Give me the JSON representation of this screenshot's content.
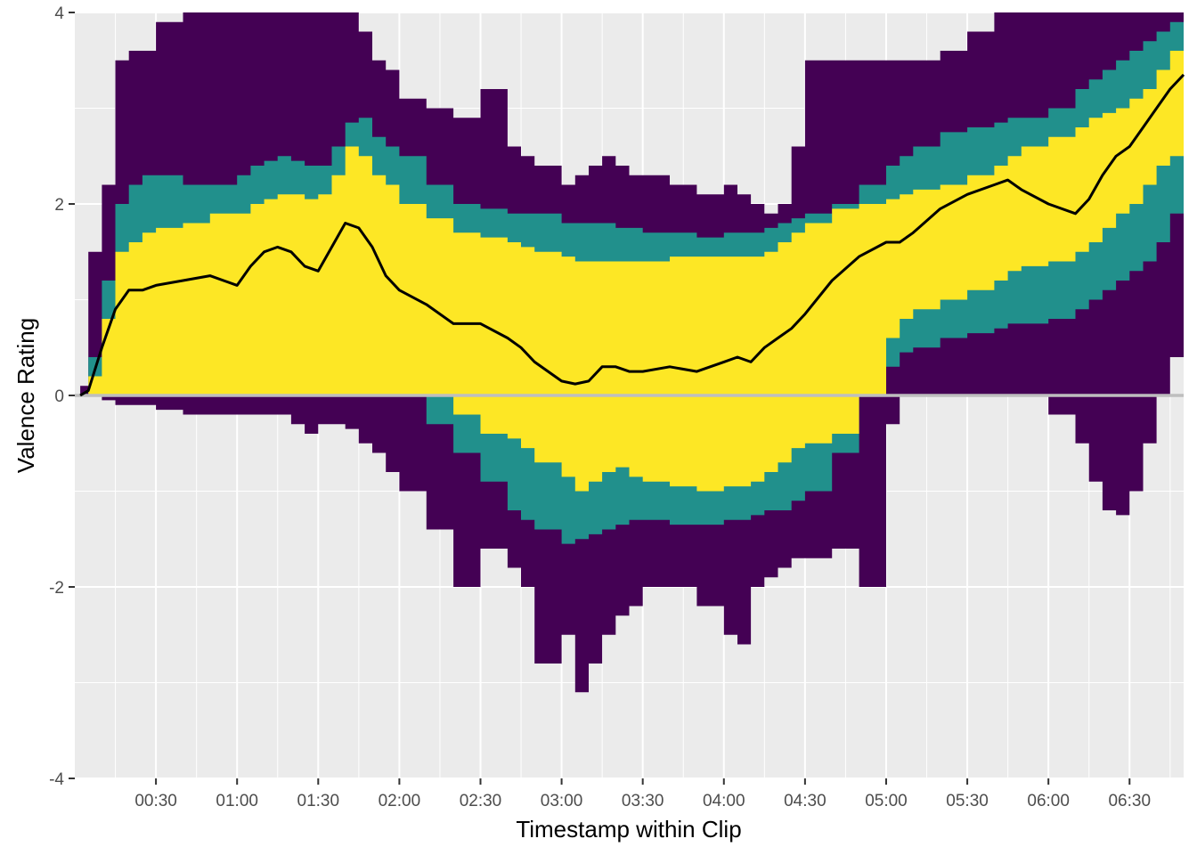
{
  "chart_data": {
    "type": "area",
    "xlabel": "Timestamp within Clip",
    "ylabel": "Valence Rating",
    "xlim": [
      0,
      410
    ],
    "ylim": [
      -4,
      4
    ],
    "x_ticks": [
      {
        "value": 30,
        "label": "00:30"
      },
      {
        "value": 60,
        "label": "01:00"
      },
      {
        "value": 90,
        "label": "01:30"
      },
      {
        "value": 120,
        "label": "02:00"
      },
      {
        "value": 150,
        "label": "02:30"
      },
      {
        "value": 180,
        "label": "03:00"
      },
      {
        "value": 210,
        "label": "03:30"
      },
      {
        "value": 240,
        "label": "04:00"
      },
      {
        "value": 270,
        "label": "04:30"
      },
      {
        "value": 300,
        "label": "05:00"
      },
      {
        "value": 330,
        "label": "05:30"
      },
      {
        "value": 360,
        "label": "06:00"
      },
      {
        "value": 390,
        "label": "06:30"
      }
    ],
    "y_ticks": [
      {
        "value": -4,
        "label": "-4"
      },
      {
        "value": -2,
        "label": "-2"
      },
      {
        "value": 0,
        "label": "0"
      },
      {
        "value": 2,
        "label": "2"
      },
      {
        "value": 4,
        "label": "4"
      }
    ],
    "reference_line_y": 0,
    "grid": true,
    "legend": "none",
    "x": [
      2,
      5,
      10,
      15,
      20,
      25,
      30,
      40,
      50,
      60,
      65,
      70,
      75,
      80,
      85,
      90,
      95,
      100,
      105,
      110,
      115,
      120,
      130,
      140,
      150,
      160,
      165,
      170,
      180,
      185,
      190,
      195,
      200,
      205,
      210,
      220,
      230,
      240,
      245,
      250,
      255,
      260,
      265,
      270,
      280,
      290,
      300,
      305,
      310,
      320,
      330,
      340,
      345,
      350,
      360,
      370,
      375,
      380,
      385,
      390,
      395,
      400,
      405,
      410
    ],
    "series": [
      {
        "color": "#000000",
        "values": [
          0,
          0.05,
          0.5,
          0.9,
          1.1,
          1.1,
          1.15,
          1.2,
          1.25,
          1.15,
          1.35,
          1.5,
          1.55,
          1.5,
          1.35,
          1.3,
          1.55,
          1.8,
          1.75,
          1.55,
          1.25,
          1.1,
          0.95,
          0.75,
          0.75,
          0.6,
          0.5,
          0.35,
          0.15,
          0.12,
          0.15,
          0.3,
          0.3,
          0.25,
          0.25,
          0.3,
          0.25,
          0.35,
          0.4,
          0.35,
          0.5,
          0.6,
          0.7,
          0.85,
          1.2,
          1.45,
          1.6,
          1.6,
          1.7,
          1.95,
          2.1,
          2.2,
          2.25,
          2.15,
          2.0,
          1.9,
          2.05,
          2.3,
          2.5,
          2.6,
          2.8,
          3.0,
          3.2,
          3.35
        ]
      }
    ],
    "bands": [
      {
        "color": "#440154",
        "lower": [
          0,
          0,
          -0.05,
          -0.1,
          -0.1,
          -0.1,
          -0.15,
          -0.2,
          -0.2,
          -0.2,
          -0.2,
          -0.2,
          -0.2,
          -0.3,
          -0.4,
          -0.3,
          -0.3,
          -0.35,
          -0.5,
          -0.6,
          -0.8,
          -1.0,
          -1.4,
          -2.0,
          -1.6,
          -1.8,
          -2.0,
          -2.8,
          -2.5,
          -3.1,
          -2.8,
          -2.5,
          -2.3,
          -2.2,
          -2.0,
          -2.0,
          -2.2,
          -2.5,
          -2.6,
          -2.0,
          -1.9,
          -1.8,
          -1.7,
          -1.7,
          -1.6,
          -2.0,
          -0.3,
          0.0,
          0.0,
          0.0,
          0.0,
          0.0,
          0.0,
          0.0,
          -0.2,
          -0.5,
          -0.9,
          -1.2,
          -1.25,
          -1.0,
          -0.5,
          0.0,
          0.4,
          0.6
        ],
        "upper": [
          0.1,
          1.5,
          2.2,
          3.5,
          3.6,
          3.6,
          3.9,
          4.0,
          4.0,
          4.0,
          4.0,
          4.0,
          4.0,
          4.0,
          4.0,
          4.0,
          4.0,
          4.0,
          3.8,
          3.5,
          3.4,
          3.1,
          3.0,
          2.9,
          3.2,
          2.6,
          2.5,
          2.4,
          2.2,
          2.3,
          2.4,
          2.5,
          2.4,
          2.3,
          2.3,
          2.2,
          2.1,
          2.2,
          2.1,
          2.0,
          1.9,
          2.0,
          2.6,
          3.5,
          3.5,
          3.5,
          3.5,
          3.5,
          3.5,
          3.6,
          3.8,
          4.0,
          4.0,
          4.0,
          4.0,
          4.0,
          4.0,
          4.0,
          4.0,
          4.0,
          4.0,
          4.0,
          4.0,
          4.0
        ]
      },
      {
        "color": "#21908C",
        "lower": [
          0,
          0,
          0,
          0,
          0,
          0.1,
          0.2,
          0.3,
          0.3,
          0.3,
          0.4,
          0.45,
          0.5,
          0.55,
          0.6,
          0.7,
          0.8,
          0.95,
          0.85,
          0.55,
          0.3,
          0.1,
          -0.3,
          -0.6,
          -0.9,
          -1.2,
          -1.3,
          -1.4,
          -1.55,
          -1.5,
          -1.45,
          -1.4,
          -1.35,
          -1.3,
          -1.3,
          -1.35,
          -1.35,
          -1.3,
          -1.3,
          -1.25,
          -1.2,
          -1.2,
          -1.1,
          -1.0,
          -0.6,
          0.0,
          0.3,
          0.45,
          0.5,
          0.6,
          0.65,
          0.7,
          0.75,
          0.75,
          0.8,
          0.9,
          1.0,
          1.1,
          1.2,
          1.3,
          1.4,
          1.6,
          1.9,
          2.0
        ],
        "upper": [
          0,
          0.4,
          1.2,
          2.0,
          2.2,
          2.3,
          2.3,
          2.2,
          2.2,
          2.3,
          2.4,
          2.45,
          2.5,
          2.45,
          2.4,
          2.4,
          2.6,
          2.85,
          2.9,
          2.7,
          2.6,
          2.5,
          2.2,
          2.0,
          1.95,
          1.9,
          1.9,
          1.9,
          1.8,
          1.8,
          1.8,
          1.8,
          1.75,
          1.75,
          1.7,
          1.7,
          1.65,
          1.7,
          1.7,
          1.7,
          1.75,
          1.8,
          1.85,
          1.9,
          2.0,
          2.2,
          2.4,
          2.5,
          2.6,
          2.75,
          2.8,
          2.85,
          2.9,
          2.9,
          3.0,
          3.2,
          3.3,
          3.4,
          3.5,
          3.6,
          3.7,
          3.8,
          3.9,
          4.0
        ]
      },
      {
        "color": "#FDE725",
        "lower": [
          0,
          0,
          0,
          0,
          0,
          0,
          0,
          0,
          0,
          0,
          0,
          0,
          0,
          0,
          0,
          0,
          0,
          0,
          0,
          0,
          0,
          0,
          0,
          -0.2,
          -0.4,
          -0.45,
          -0.55,
          -0.7,
          -0.85,
          -1.0,
          -0.9,
          -0.8,
          -0.75,
          -0.85,
          -0.9,
          -0.95,
          -1.0,
          -0.95,
          -0.95,
          -0.9,
          -0.8,
          -0.7,
          -0.55,
          -0.5,
          -0.4,
          0.0,
          0.6,
          0.8,
          0.9,
          1.0,
          1.1,
          1.2,
          1.3,
          1.35,
          1.4,
          1.5,
          1.6,
          1.75,
          1.9,
          2.0,
          2.2,
          2.4,
          2.5,
          2.6
        ],
        "upper": [
          0,
          0.2,
          0.8,
          1.5,
          1.6,
          1.7,
          1.75,
          1.8,
          1.9,
          1.9,
          2.0,
          2.05,
          2.1,
          2.1,
          2.05,
          2.1,
          2.3,
          2.6,
          2.5,
          2.3,
          2.2,
          2.0,
          1.85,
          1.7,
          1.65,
          1.6,
          1.55,
          1.5,
          1.45,
          1.4,
          1.4,
          1.4,
          1.4,
          1.4,
          1.4,
          1.45,
          1.45,
          1.45,
          1.45,
          1.45,
          1.5,
          1.6,
          1.7,
          1.8,
          1.95,
          2.0,
          2.05,
          2.1,
          2.15,
          2.2,
          2.3,
          2.4,
          2.5,
          2.6,
          2.7,
          2.8,
          2.9,
          2.95,
          3.0,
          3.1,
          3.2,
          3.4,
          3.6,
          3.8
        ]
      }
    ]
  }
}
